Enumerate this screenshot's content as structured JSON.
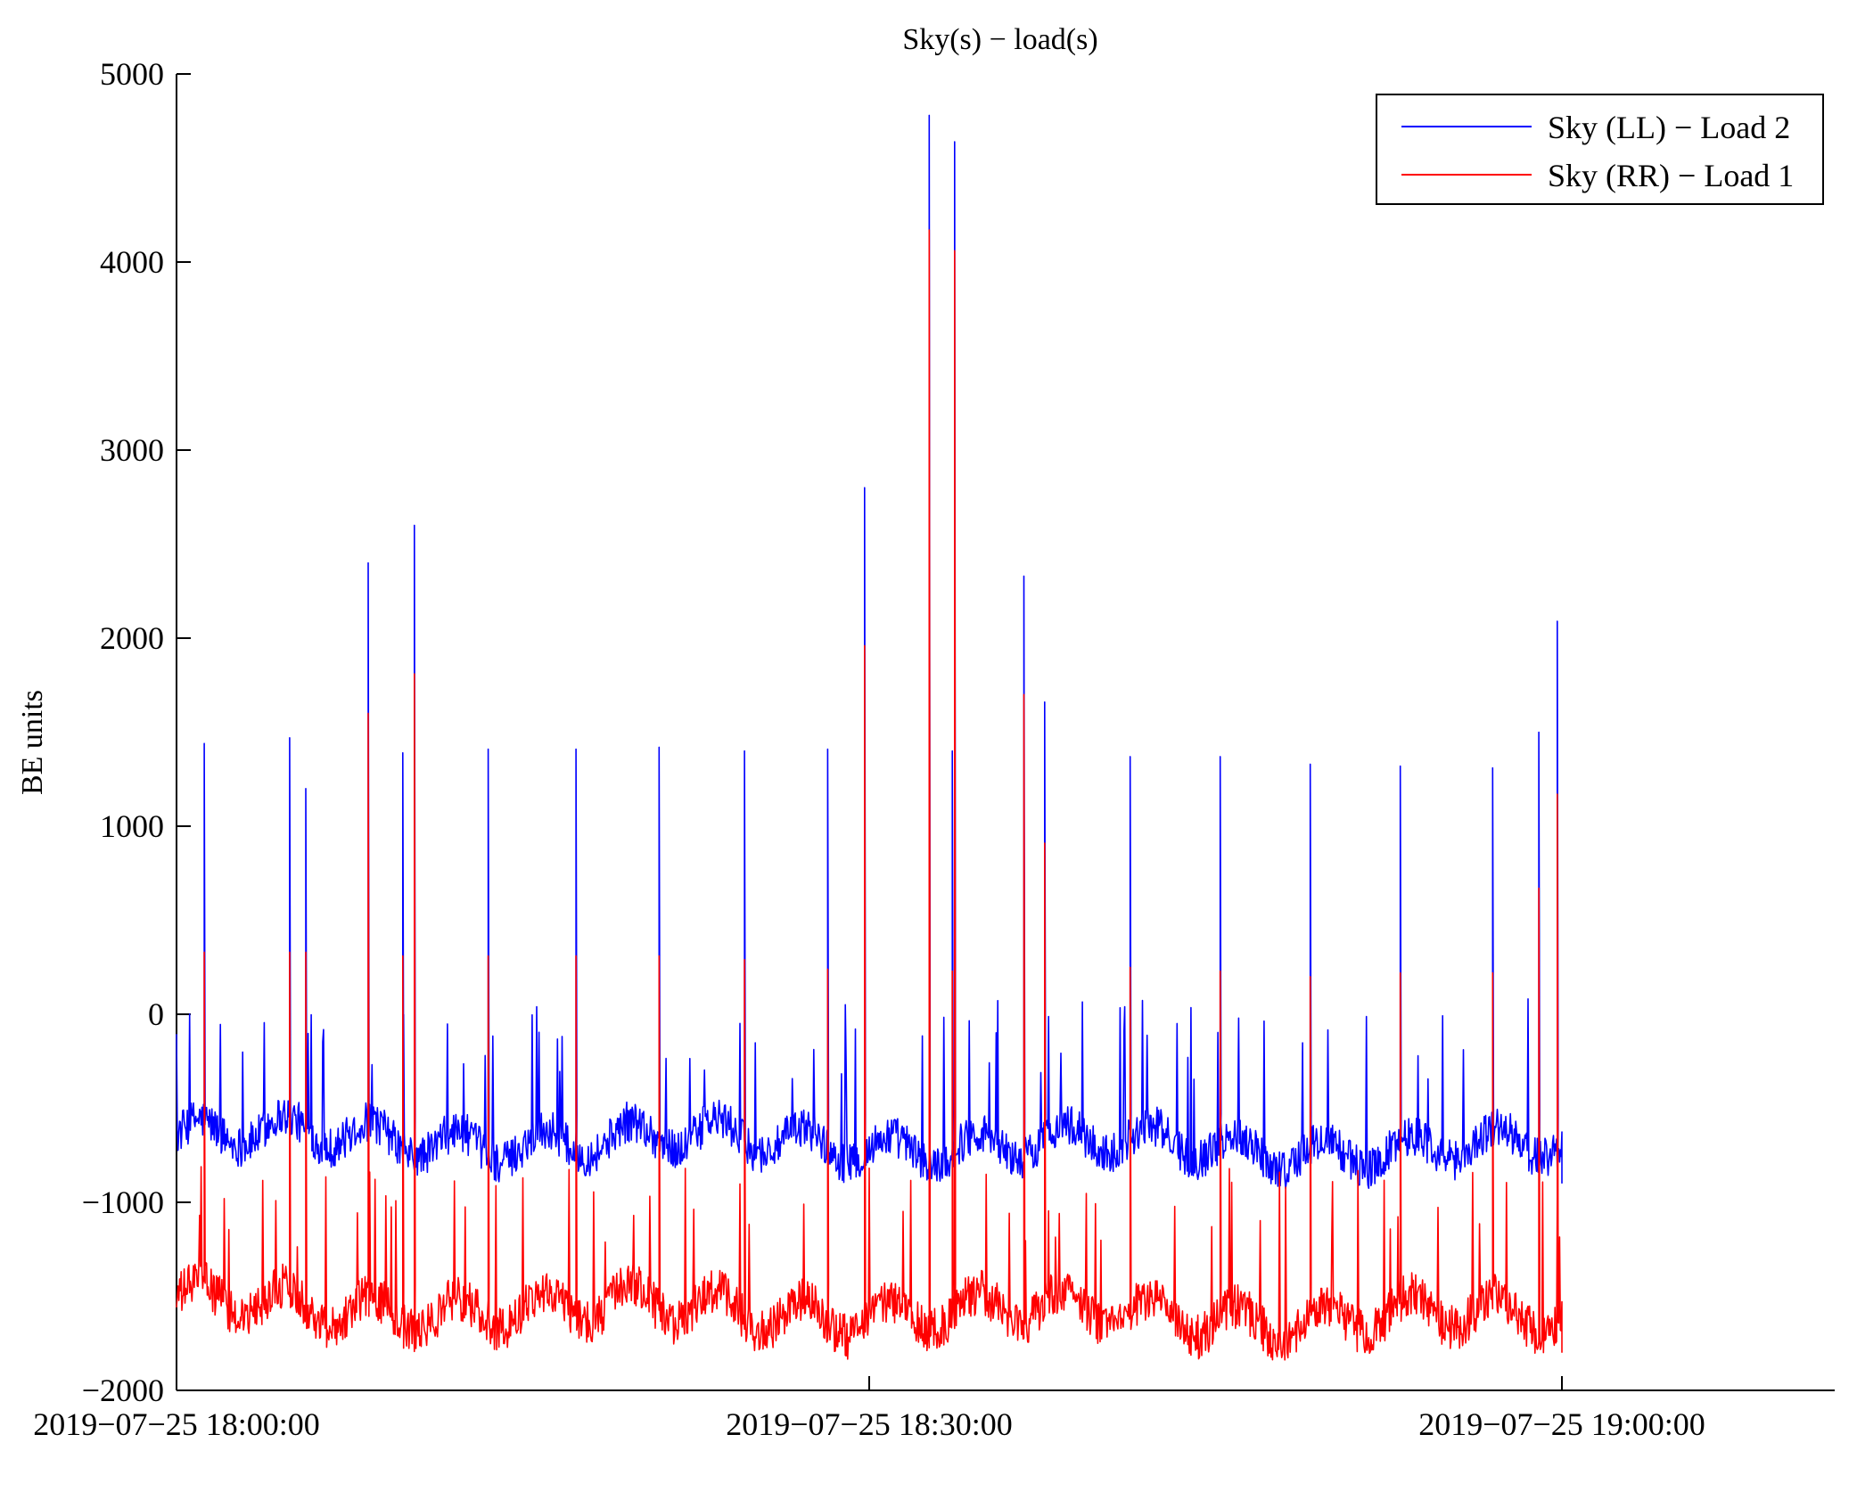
{
  "chart_data": {
    "type": "line",
    "title": "Sky(s) − load(s)",
    "xlabel": "",
    "ylabel": "BE units",
    "ylim": [
      -2000,
      5000
    ],
    "yticks": [
      5000,
      4000,
      3000,
      2000,
      1000,
      0,
      -1000,
      -2000
    ],
    "ytick_labels": [
      "5000",
      "4000",
      "3000",
      "2000",
      "1000",
      "0",
      "−1000",
      "−2000"
    ],
    "xlim_minutes": [
      0,
      72
    ],
    "xticks_minutes": [
      0,
      30,
      60
    ],
    "xtick_labels": [
      "2019−07−25 18:00:00",
      "2019−07−25 18:30:00",
      "2019−07−25 19:00:00"
    ],
    "grid": false,
    "legend_position": "top-right",
    "data_end_minute": 60,
    "series": [
      {
        "name": "Sky (LL) − Load 2",
        "color": "#0000ff",
        "baseline": -650,
        "baseline_amplitude": 180,
        "tall_spikes": [
          {
            "t": 1.2,
            "v": 1440
          },
          {
            "t": 4.9,
            "v": 1470
          },
          {
            "t": 5.6,
            "v": 1200
          },
          {
            "t": 8.3,
            "v": 2400
          },
          {
            "t": 9.8,
            "v": 1390
          },
          {
            "t": 10.3,
            "v": 2600
          },
          {
            "t": 13.5,
            "v": 1410
          },
          {
            "t": 17.3,
            "v": 1410
          },
          {
            "t": 20.9,
            "v": 1420
          },
          {
            "t": 24.6,
            "v": 1400
          },
          {
            "t": 28.2,
            "v": 1410
          },
          {
            "t": 29.8,
            "v": 2800
          },
          {
            "t": 32.6,
            "v": 4780
          },
          {
            "t": 33.6,
            "v": 1400
          },
          {
            "t": 33.7,
            "v": 4640
          },
          {
            "t": 36.7,
            "v": 2330
          },
          {
            "t": 37.6,
            "v": 1660
          },
          {
            "t": 41.3,
            "v": 1370
          },
          {
            "t": 45.2,
            "v": 1370
          },
          {
            "t": 49.1,
            "v": 1330
          },
          {
            "t": 53.0,
            "v": 1320
          },
          {
            "t": 57.0,
            "v": 1310
          },
          {
            "t": 59.0,
            "v": 1500
          },
          {
            "t": 59.8,
            "v": 2090
          }
        ],
        "end_value": -900
      },
      {
        "name": "Sky (RR) − Load 1",
        "color": "#ff0000",
        "baseline": -1550,
        "baseline_amplitude": 200,
        "tall_spikes": [
          {
            "t": 1.2,
            "v": 330
          },
          {
            "t": 4.9,
            "v": 330
          },
          {
            "t": 5.6,
            "v": 330
          },
          {
            "t": 8.3,
            "v": 1600
          },
          {
            "t": 9.8,
            "v": 310
          },
          {
            "t": 10.3,
            "v": 1810
          },
          {
            "t": 13.5,
            "v": 310
          },
          {
            "t": 17.3,
            "v": 310
          },
          {
            "t": 20.9,
            "v": 310
          },
          {
            "t": 24.6,
            "v": 290
          },
          {
            "t": 28.2,
            "v": 240
          },
          {
            "t": 29.8,
            "v": 1960
          },
          {
            "t": 32.6,
            "v": 4170
          },
          {
            "t": 33.6,
            "v": 230
          },
          {
            "t": 33.7,
            "v": 4060
          },
          {
            "t": 36.7,
            "v": 1700
          },
          {
            "t": 37.6,
            "v": 910
          },
          {
            "t": 41.3,
            "v": 250
          },
          {
            "t": 45.2,
            "v": 230
          },
          {
            "t": 49.1,
            "v": 200
          },
          {
            "t": 53.0,
            "v": 220
          },
          {
            "t": 57.0,
            "v": 220
          },
          {
            "t": 59.0,
            "v": 670
          },
          {
            "t": 59.8,
            "v": 1170
          }
        ],
        "end_value": -1800
      }
    ]
  }
}
